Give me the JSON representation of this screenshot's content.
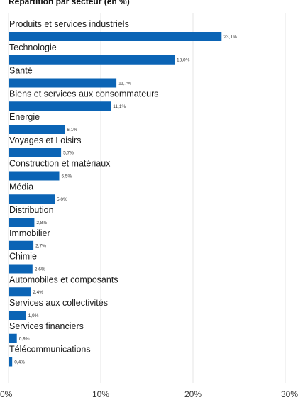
{
  "chart_data": {
    "type": "bar",
    "orientation": "horizontal",
    "title": "Répartition par secteur (en %)",
    "categories": [
      "Produits et services industriels",
      "Technologie",
      "Santé",
      "Biens et services aux consommateurs",
      "Energie",
      "Voyages et Loisirs",
      "Construction et matériaux",
      "Média",
      "Distribution",
      "Immobilier",
      "Chimie",
      "Automobiles et composants",
      "Services aux collectivités",
      "Services financiers",
      "Télécommunications"
    ],
    "values": [
      23.1,
      18.0,
      11.7,
      11.1,
      6.1,
      5.7,
      5.5,
      5.0,
      2.8,
      2.7,
      2.6,
      2.4,
      1.9,
      0.9,
      0.4
    ],
    "value_labels": [
      "23,1%",
      "18,0%",
      "11,7%",
      "11,1%",
      "6,1%",
      "5,7%",
      "5,5%",
      "5,0%",
      "2,8%",
      "2,7%",
      "2,6%",
      "2,4%",
      "1,9%",
      "0,9%",
      "0,4%"
    ],
    "xlim": [
      0,
      30
    ],
    "xticks": [
      0,
      10,
      20,
      30
    ],
    "xtick_labels": [
      "0%",
      "10%",
      "20%",
      "30%"
    ],
    "grid": true,
    "bar_color": "#0b64b5",
    "grid_color": "#e6e6e6"
  }
}
